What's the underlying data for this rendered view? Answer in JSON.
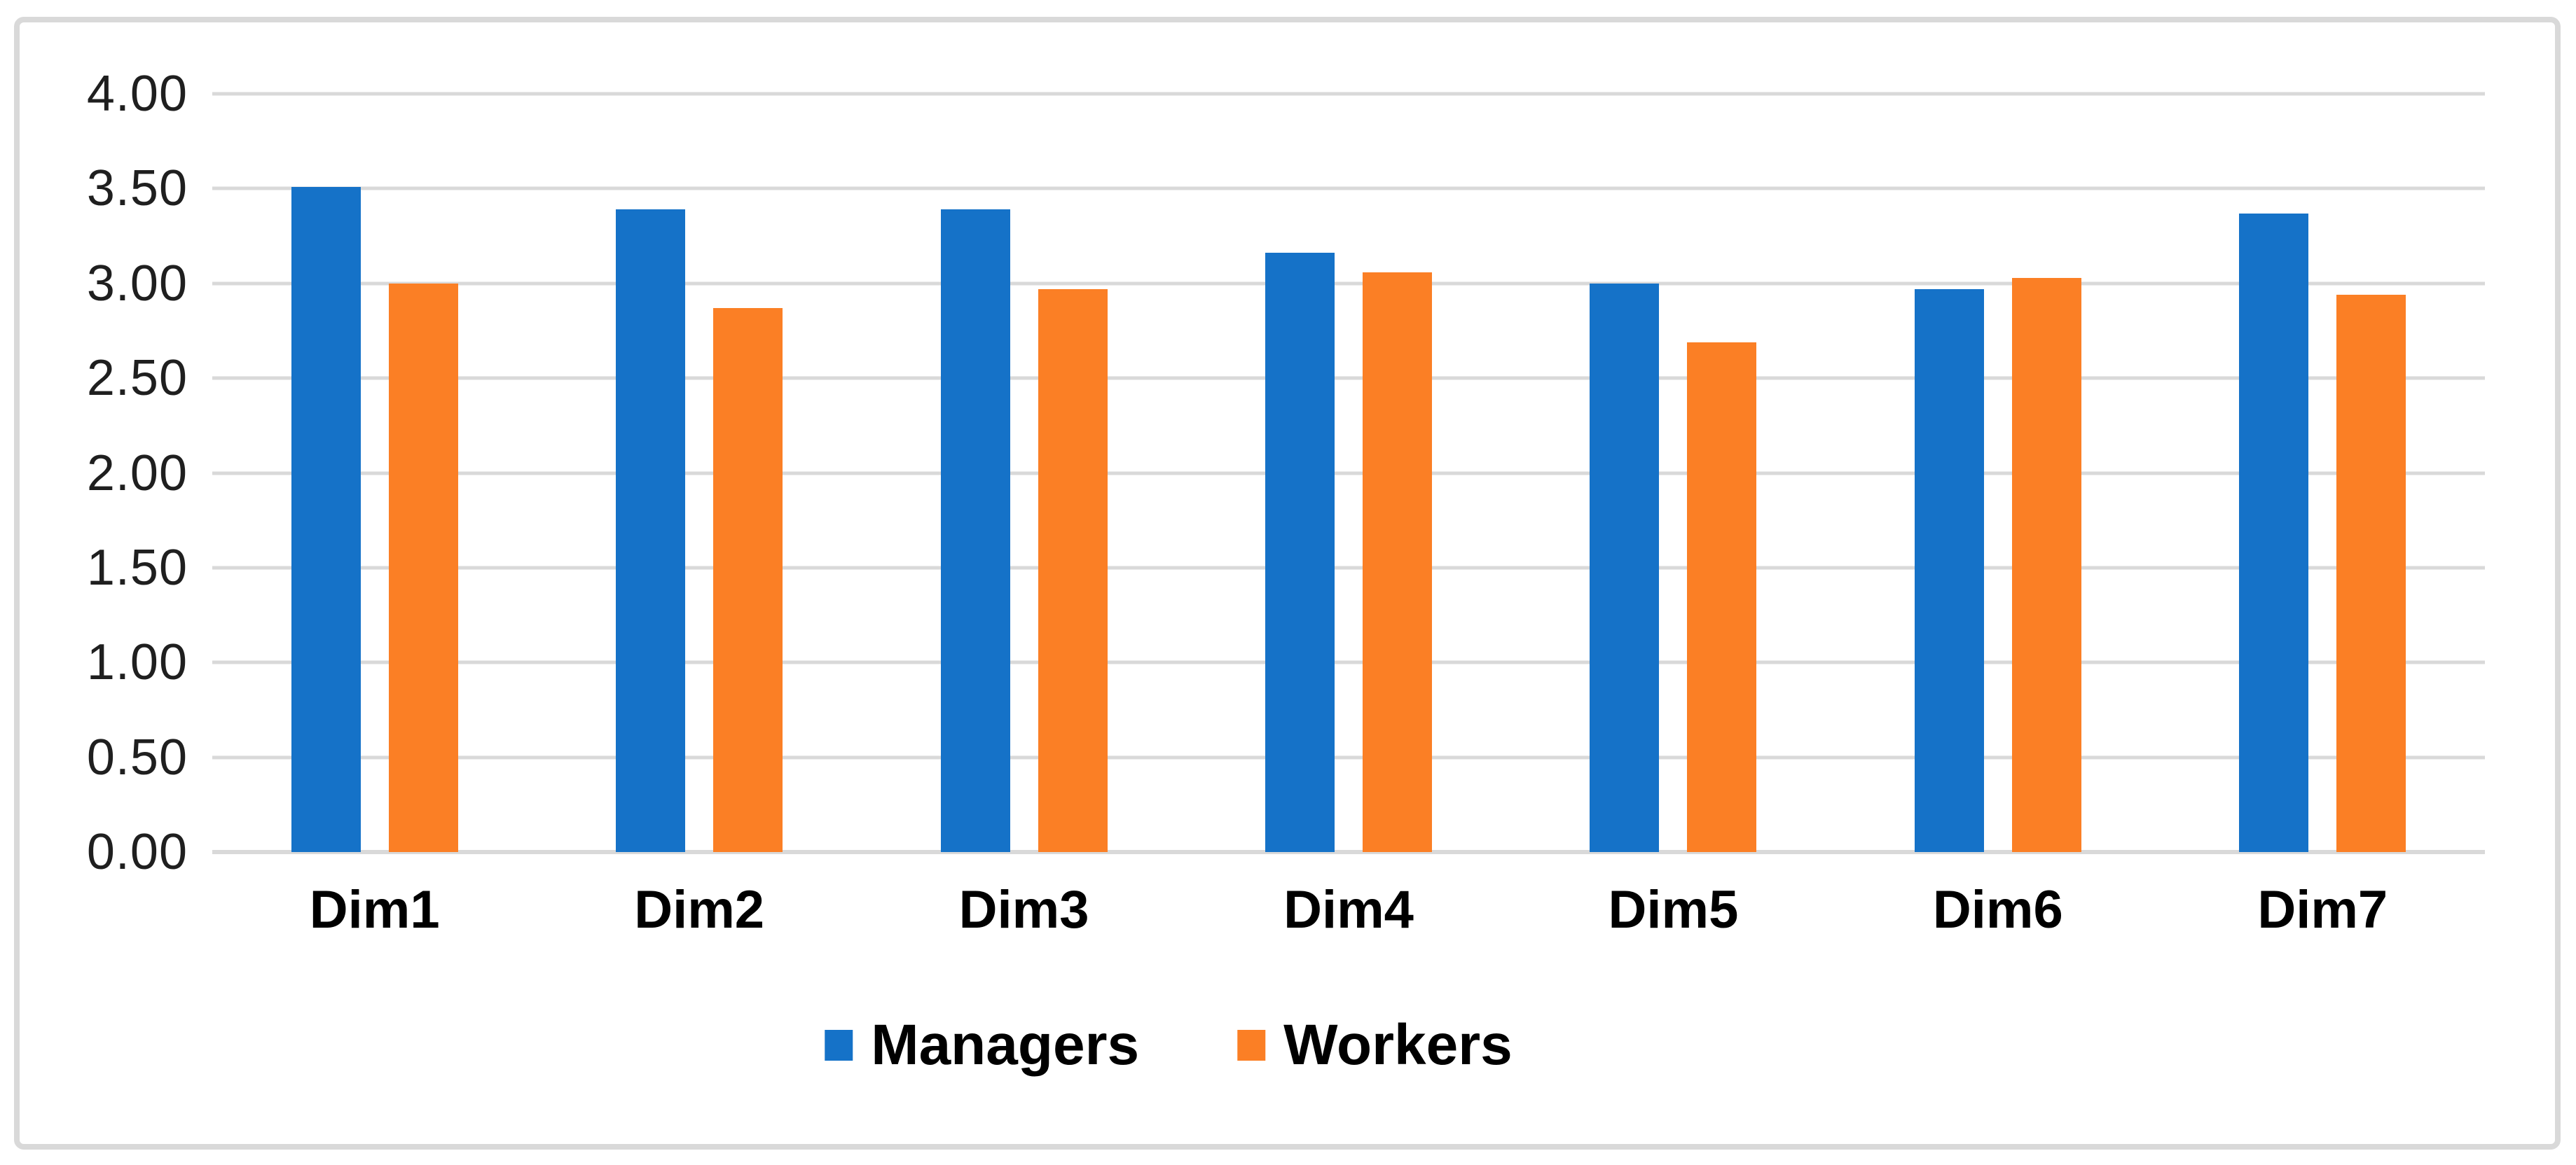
{
  "chart_data": {
    "type": "bar",
    "title": "",
    "xlabel": "",
    "ylabel": "",
    "categories": [
      "Dim1",
      "Dim2",
      "Dim3",
      "Dim4",
      "Dim5",
      "Dim6",
      "Dim7"
    ],
    "series": [
      {
        "name": "Managers",
        "color": "#1572C8",
        "values": [
          3.51,
          3.39,
          3.39,
          3.16,
          3.0,
          2.97,
          3.37
        ]
      },
      {
        "name": "Workers",
        "color": "#FB7F25",
        "values": [
          3.0,
          2.87,
          2.97,
          3.06,
          2.69,
          3.03,
          2.94
        ]
      }
    ],
    "ylim": [
      0,
      4
    ],
    "ytick_step": 0.5,
    "ytick_labels": [
      "0.00",
      "0.50",
      "1.00",
      "1.50",
      "2.00",
      "2.50",
      "3.00",
      "3.50",
      "4.00"
    ],
    "grid": "horizontal",
    "gridline_color": "#D9D9D9",
    "legend_position": "bottom-center",
    "frame_color": "#D9D9D9",
    "background_color": "#FFFFFF"
  }
}
